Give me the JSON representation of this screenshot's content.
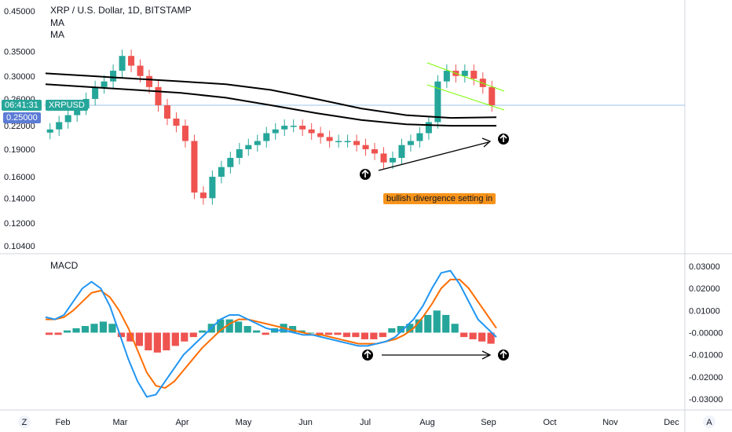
{
  "header": {
    "symbol_title": "XRP / U.S. Dollar, 1D, BITSTAMP",
    "indicator_1": "MA",
    "indicator_2": "MA"
  },
  "price_badges": {
    "time_label": "06:41:31",
    "symbol_label": "XRPUSD",
    "current_price": "0.25000"
  },
  "annotation": {
    "text": "bullish divergence setting in",
    "color": "#f7931a"
  },
  "macd_panel": {
    "title": "MACD"
  },
  "footer": {
    "left_button": "Z",
    "right_button": "A"
  },
  "colors": {
    "up_candle": "#26a69a",
    "down_candle": "#ef5350",
    "macd_line": "#2196f3",
    "signal_line": "#ff6d00",
    "hist_up": "#26a69a",
    "hist_down": "#ef5350",
    "ma_line": "#000000",
    "channel": "#7cfc00",
    "price_line": "#9ec5e8"
  },
  "chart_data": [
    {
      "type": "candlestick",
      "title": "XRP / U.S. Dollar, 1D, BITSTAMP",
      "y_axis_ticks": [
        "0.45000",
        "0.35000",
        "0.30000",
        "0.26000",
        "0.22000",
        "0.19000",
        "0.16000",
        "0.14000",
        "0.12000",
        "0.10400"
      ],
      "y_axis_values": [
        0.45,
        0.35,
        0.3,
        0.26,
        0.22,
        0.19,
        0.16,
        0.14,
        0.12,
        0.104
      ],
      "y_scale": "log",
      "x_axis_ticks": [
        "Feb",
        "Mar",
        "Apr",
        "May",
        "Jun",
        "Jul",
        "Aug",
        "Sep",
        "Oct",
        "Nov",
        "Dec"
      ],
      "ylim": [
        0.1,
        0.46
      ],
      "close_series": [
        0.215,
        0.225,
        0.235,
        0.245,
        0.26,
        0.28,
        0.29,
        0.31,
        0.34,
        0.32,
        0.3,
        0.28,
        0.25,
        0.23,
        0.22,
        0.2,
        0.145,
        0.14,
        0.16,
        0.17,
        0.18,
        0.19,
        0.195,
        0.2,
        0.21,
        0.215,
        0.22,
        0.22,
        0.215,
        0.21,
        0.205,
        0.2,
        0.2,
        0.2,
        0.195,
        0.19,
        0.185,
        0.175,
        0.18,
        0.195,
        0.2,
        0.21,
        0.225,
        0.29,
        0.31,
        0.3,
        0.31,
        0.295,
        0.28,
        0.25
      ],
      "ma_series": [
        {
          "values": [
            0.305,
            0.3,
            0.295,
            0.29,
            0.285,
            0.275,
            0.26,
            0.245,
            0.235,
            0.231,
            0.232
          ]
        },
        {
          "values": [
            0.285,
            0.28,
            0.275,
            0.27,
            0.262,
            0.25,
            0.238,
            0.228,
            0.222,
            0.22,
            0.22
          ]
        }
      ]
    },
    {
      "type": "bar",
      "title": "MACD",
      "y_axis_ticks": [
        "0.03000",
        "0.02000",
        "0.01000",
        "-0.00000",
        "-0.01000",
        "-0.02000",
        "-0.03000"
      ],
      "y_axis_values": [
        0.03,
        0.02,
        0.01,
        0,
        -0.01,
        -0.02,
        -0.03
      ],
      "ylim": [
        -0.033,
        0.033
      ],
      "histogram": [
        -0.001,
        -0.001,
        0.001,
        0.002,
        0.003,
        0.004,
        0.005,
        0.004,
        -0.002,
        -0.004,
        -0.006,
        -0.008,
        -0.009,
        -0.008,
        -0.006,
        -0.004,
        -0.002,
        0.001,
        0.004,
        0.006,
        0.006,
        0.005,
        0.003,
        0.001,
        -0.001,
        0.002,
        0.004,
        0.003,
        0.001,
        0,
        -0.001,
        -0.001,
        -0.001,
        -0.002,
        -0.002,
        -0.003,
        -0.003,
        -0.002,
        0.002,
        0.003,
        0.004,
        0.006,
        0.008,
        0.01,
        0.008,
        0.004,
        -0.002,
        -0.003,
        -0.004,
        -0.005
      ],
      "macd_series": [
        0.007,
        0.006,
        0.008,
        0.014,
        0.02,
        0.023,
        0.02,
        0.012,
        0.0,
        -0.012,
        -0.022,
        -0.029,
        -0.028,
        -0.022,
        -0.016,
        -0.01,
        -0.006,
        -0.002,
        0.002,
        0.006,
        0.008,
        0.008,
        0.006,
        0.004,
        0.002,
        0.001,
        0.001,
        0.0,
        -0.001,
        -0.001,
        -0.002,
        -0.003,
        -0.004,
        -0.005,
        -0.006,
        -0.006,
        -0.005,
        -0.004,
        -0.002,
        0.002,
        0.006,
        0.012,
        0.02,
        0.027,
        0.028,
        0.022,
        0.014,
        0.006,
        0.002,
        -0.002
      ],
      "signal_series": [
        0.006,
        0.006,
        0.007,
        0.01,
        0.014,
        0.018,
        0.019,
        0.016,
        0.01,
        0.002,
        -0.008,
        -0.018,
        -0.024,
        -0.025,
        -0.022,
        -0.017,
        -0.012,
        -0.007,
        -0.003,
        0.001,
        0.004,
        0.006,
        0.006,
        0.005,
        0.004,
        0.003,
        0.002,
        0.001,
        0.0,
        -0.001,
        -0.001,
        -0.002,
        -0.003,
        -0.004,
        -0.005,
        -0.005,
        -0.005,
        -0.004,
        -0.003,
        -0.001,
        0.002,
        0.007,
        0.013,
        0.02,
        0.024,
        0.024,
        0.02,
        0.014,
        0.008,
        0.002
      ]
    }
  ]
}
